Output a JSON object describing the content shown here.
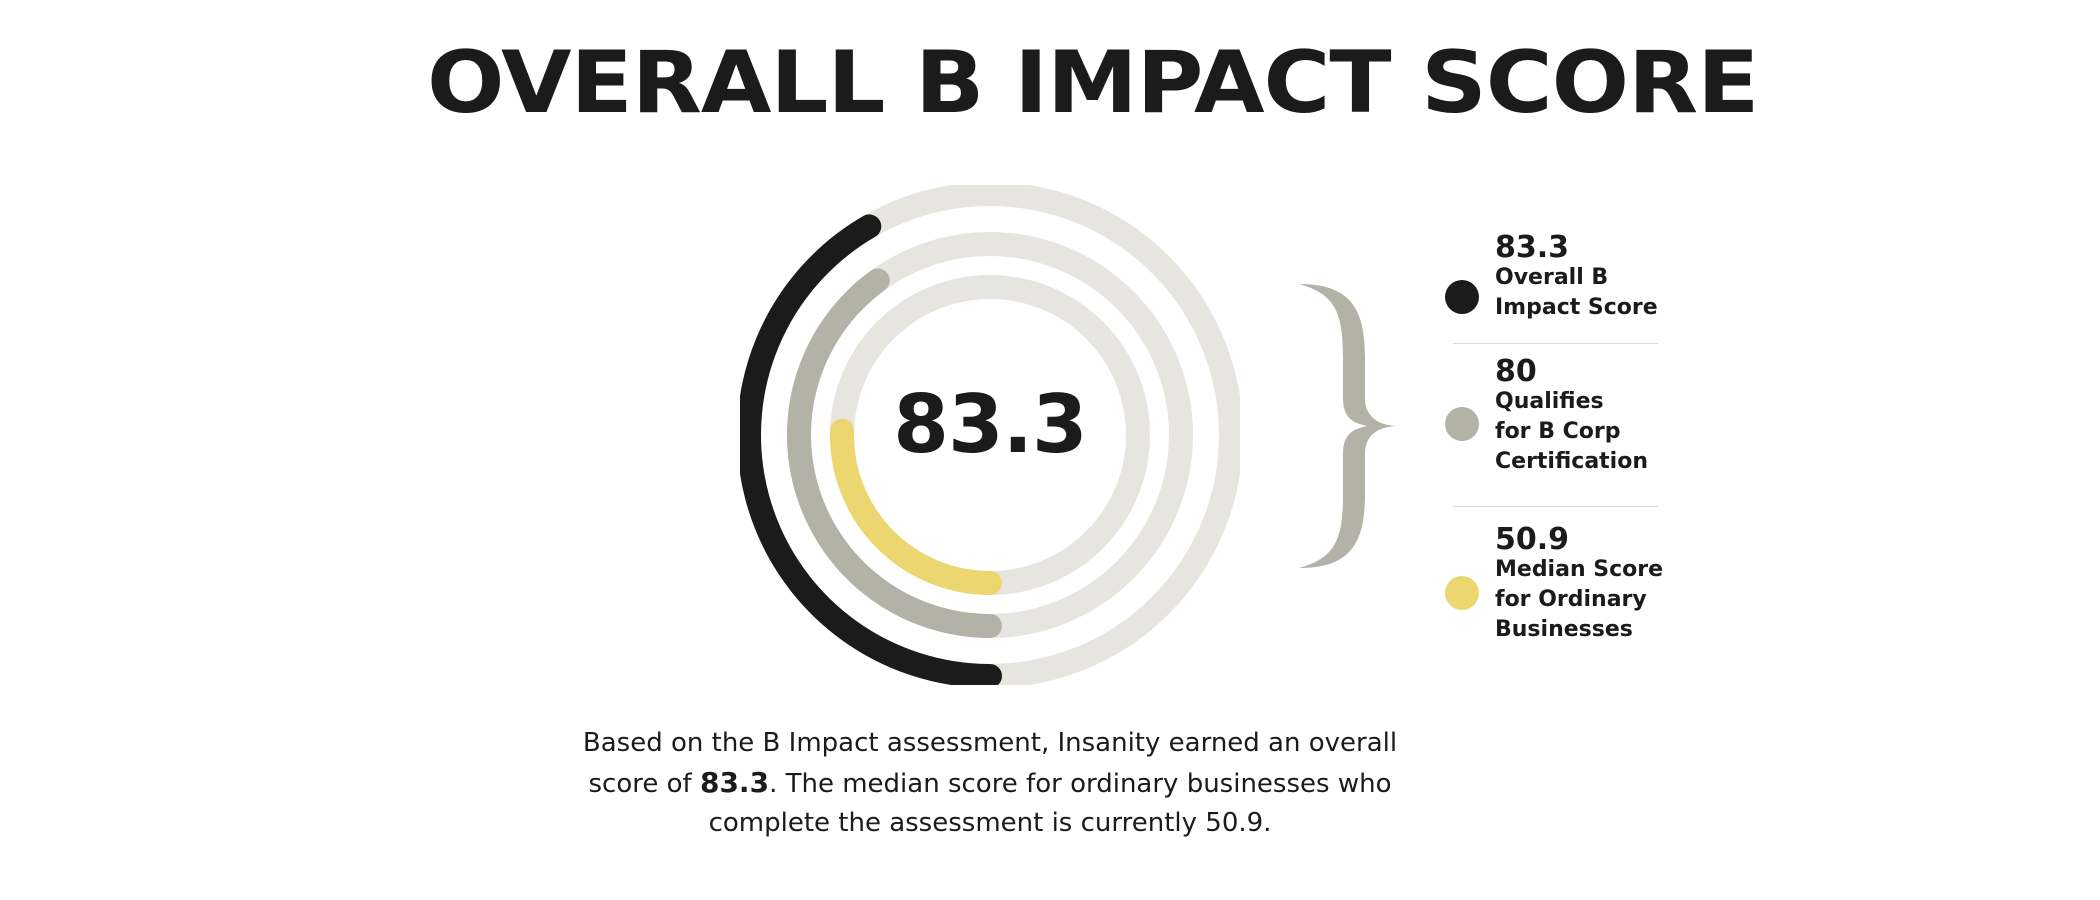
{
  "title": "OVERALL B IMPACT SCORE",
  "center_value": "83.3",
  "caption": {
    "before": "Based on the B Impact assessment, Insanity earned an overall score of ",
    "score": "83.3",
    "after": ". The median score for ordinary businesses who complete the assessment is currently 50.9."
  },
  "colors": {
    "track": "#e6e5df",
    "overall": "#1b1b1b",
    "qualifies": "#b3b2a7",
    "median": "#ebd66f",
    "brace": "#b3b2a7"
  },
  "chart_data": {
    "type": "radial-bar",
    "max": 200,
    "series": [
      {
        "name": "Overall B Impact Score",
        "value": 83.3,
        "color": "#1b1b1b"
      },
      {
        "name": "Qualifies for B Corp Certification",
        "value": 80,
        "color": "#b3b2a7"
      },
      {
        "name": "Median Score for Ordinary Businesses",
        "value": 50.9,
        "color": "#ebd66f"
      }
    ]
  },
  "legend": [
    {
      "value": "83.3",
      "label": "Overall B\nImpact Score",
      "color": "#1b1b1b"
    },
    {
      "value": "80",
      "label": "Qualifies\nfor B Corp\nCertification",
      "color": "#b3b2a7"
    },
    {
      "value": "50.9",
      "label": "Median Score\nfor Ordinary\nBusinesses",
      "color": "#ebd66f"
    }
  ]
}
